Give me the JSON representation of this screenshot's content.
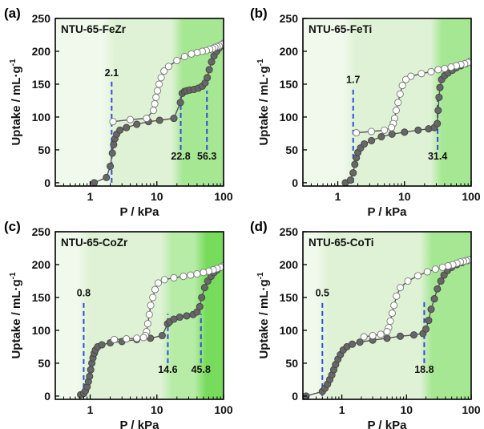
{
  "chart_data": [
    {
      "type": "scatter",
      "panel_label": "(a)",
      "title": "NTU-65-FeZr",
      "xlabel": "P / kPa",
      "ylabel": "Uptake / mL·g",
      "ylabel_sup": "-1",
      "xscale": "log",
      "xlim": [
        0.3,
        100
      ],
      "ylim": [
        -5,
        250
      ],
      "xticks": [
        1,
        10,
        100
      ],
      "xtick_labels": [
        "1",
        "10",
        "100"
      ],
      "yticks": [
        0,
        50,
        100,
        150,
        200,
        250
      ],
      "ytick_labels": [
        "0",
        "50",
        "100",
        "150",
        "200",
        "250"
      ],
      "background_bands": [
        {
          "from": 0.3,
          "to": 1.9,
          "color": "#f0f9ec"
        },
        {
          "from": 1.9,
          "to": 20,
          "color": "#dff2d5"
        },
        {
          "from": 20,
          "to": 100,
          "color": "#a6e794"
        }
      ],
      "markers": [
        {
          "x": 2.1,
          "y_from": 0,
          "y_to": 155,
          "label": "2.1",
          "label_x": 2.1,
          "label_y": 162
        },
        {
          "x": 22.8,
          "y_from": 50,
          "y_to": 140,
          "label": "22.8",
          "label_x": 22.8,
          "label_y": 35
        },
        {
          "x": 56.3,
          "y_from": 50,
          "y_to": 140,
          "label": "56.3",
          "label_x": 56.3,
          "label_y": 35
        }
      ],
      "series": [
        {
          "kind": "adsorption",
          "color": "#666666",
          "x": [
            1.15,
            1.75,
            2.0,
            2.15,
            2.25,
            2.35,
            2.5,
            2.8,
            3.5,
            5,
            7.5,
            11,
            18,
            22.5,
            24,
            26,
            28,
            31,
            36,
            42,
            48,
            53,
            57,
            61,
            66,
            72,
            79,
            86,
            93,
            100
          ],
          "y": [
            0,
            8,
            25,
            45,
            58,
            67,
            74,
            80,
            84,
            89,
            93,
            95,
            98,
            122,
            136,
            139,
            140,
            141,
            142,
            144,
            147,
            152,
            160,
            172,
            184,
            193,
            200,
            205,
            209,
            212
          ]
        },
        {
          "kind": "desorption",
          "color": "#ffffff",
          "x": [
            100,
            92,
            86,
            80,
            74,
            68,
            62,
            55,
            48,
            40,
            33,
            26,
            20,
            15,
            12.8,
            11.6,
            10.8,
            10.2,
            9.7,
            9.3,
            8.9,
            7,
            4,
            2.2
          ],
          "y": [
            212,
            210,
            208,
            207,
            206,
            204,
            203,
            201,
            200,
            198,
            196,
            192,
            186,
            177,
            170,
            160,
            150,
            140,
            130,
            120,
            110,
            98,
            96,
            93
          ]
        }
      ]
    },
    {
      "type": "scatter",
      "panel_label": "(b)",
      "title": "NTU-65-FeTi",
      "xlabel": "P / kPa",
      "ylabel": "Uptake / mL·g",
      "ylabel_sup": "-1",
      "xscale": "log",
      "xlim": [
        0.3,
        100
      ],
      "ylim": [
        -5,
        250
      ],
      "xticks": [
        1,
        10,
        100
      ],
      "xtick_labels": [
        "1",
        "10",
        "100"
      ],
      "yticks": [
        0,
        50,
        100,
        150,
        200,
        250
      ],
      "ytick_labels": [
        "0",
        "50",
        "100",
        "150",
        "200",
        "250"
      ],
      "background_bands": [
        {
          "from": 0.3,
          "to": 1.5,
          "color": "#f0f9ec"
        },
        {
          "from": 1.5,
          "to": 30,
          "color": "#dff2d5"
        },
        {
          "from": 30,
          "to": 100,
          "color": "#a6e794"
        }
      ],
      "markers": [
        {
          "x": 1.7,
          "y_from": 0,
          "y_to": 145,
          "label": "1.7",
          "label_x": 1.7,
          "label_y": 152
        },
        {
          "x": 31.4,
          "y_from": 50,
          "y_to": 128,
          "label": "31.4",
          "label_x": 31.4,
          "label_y": 35
        }
      ],
      "series": [
        {
          "kind": "adsorption",
          "color": "#666666",
          "x": [
            1.3,
            1.55,
            1.7,
            1.8,
            1.9,
            2.0,
            2.2,
            2.5,
            3.2,
            4.5,
            6.5,
            10,
            16,
            23,
            28,
            31,
            32,
            33,
            34,
            36,
            40,
            45,
            52,
            60,
            70,
            82,
            95,
            100
          ],
          "y": [
            0,
            4,
            15,
            28,
            38,
            46,
            53,
            59,
            64,
            70,
            74,
            77,
            80,
            82,
            84,
            90,
            110,
            130,
            145,
            157,
            163,
            167,
            171,
            175,
            178,
            181,
            184,
            185
          ]
        },
        {
          "kind": "desorption",
          "color": "#ffffff",
          "x": [
            100,
            90,
            80,
            70,
            60,
            50,
            40,
            32,
            25,
            18,
            12.5,
            10.5,
            9.3,
            8.6,
            8.0,
            7.5,
            7.1,
            6.8,
            6.4,
            5.0,
            3.2,
            1.9
          ],
          "y": [
            185,
            183,
            181,
            180,
            178,
            176,
            174,
            172,
            169,
            166,
            162,
            157,
            148,
            135,
            122,
            110,
            98,
            90,
            84,
            80,
            78,
            76
          ]
        }
      ]
    },
    {
      "type": "scatter",
      "panel_label": "(c)",
      "title": "NTU-65-CoZr",
      "xlabel": "P / kPa",
      "ylabel": "Uptake / mL·g",
      "ylabel_sup": "-1",
      "xscale": "log",
      "xlim": [
        0.3,
        100
      ],
      "ylim": [
        -5,
        250
      ],
      "xticks": [
        1,
        10,
        100
      ],
      "xtick_labels": [
        "1",
        "10",
        "100"
      ],
      "yticks": [
        0,
        50,
        100,
        150,
        200,
        250
      ],
      "ytick_labels": [
        "0",
        "50",
        "100",
        "150",
        "200",
        "250"
      ],
      "background_bands": [
        {
          "from": 0.3,
          "to": 0.8,
          "color": "#f0f9ec"
        },
        {
          "from": 0.8,
          "to": 14,
          "color": "#dff2d5"
        },
        {
          "from": 14,
          "to": 45,
          "color": "#b6eca6"
        },
        {
          "from": 45,
          "to": 100,
          "color": "#77db5c"
        }
      ],
      "markers": [
        {
          "x": 0.8,
          "y_from": 0,
          "y_to": 145,
          "label": "0.8",
          "label_x": 0.8,
          "label_y": 152
        },
        {
          "x": 14.6,
          "y_from": 50,
          "y_to": 125,
          "label": "14.6",
          "label_x": 14.6,
          "label_y": 35
        },
        {
          "x": 45.8,
          "y_from": 50,
          "y_to": 125,
          "label": "45.8",
          "label_x": 45.8,
          "label_y": 35
        }
      ],
      "series": [
        {
          "kind": "adsorption",
          "color": "#666666",
          "x": [
            0.72,
            0.8,
            0.85,
            0.9,
            0.94,
            0.98,
            1.02,
            1.06,
            1.1,
            1.15,
            1.2,
            1.3,
            1.5,
            2.0,
            3,
            5,
            8,
            12,
            14.5,
            15.5,
            18,
            22,
            28,
            35,
            40,
            44,
            47,
            52,
            58,
            65,
            72,
            80,
            90,
            100
          ],
          "y": [
            2,
            4,
            8,
            14,
            22,
            30,
            40,
            50,
            58,
            65,
            70,
            75,
            78,
            81,
            83,
            86,
            88,
            92,
            110,
            113,
            117,
            120,
            122,
            124,
            128,
            136,
            150,
            165,
            175,
            182,
            188,
            192,
            196,
            198
          ]
        },
        {
          "kind": "desorption",
          "color": "#ffffff",
          "x": [
            100,
            90,
            80,
            70,
            60,
            50,
            40,
            32,
            25,
            18,
            13,
            10.5,
            9.4,
            8.7,
            8.1,
            7.7,
            7.3,
            7.0,
            6.7,
            6.3,
            5.0,
            3.5,
            2.3
          ],
          "y": [
            198,
            196,
            194,
            192,
            190,
            188,
            186,
            184,
            182,
            180,
            177,
            172,
            162,
            150,
            138,
            124,
            110,
            98,
            92,
            89,
            88,
            87,
            86
          ]
        }
      ]
    },
    {
      "type": "scatter",
      "panel_label": "(d)",
      "title": "NTU-65-CoTi",
      "xlabel": "P / kPa",
      "ylabel": "Uptake / mL·g",
      "ylabel_sup": "-1",
      "xscale": "log",
      "xlim": [
        0.25,
        100
      ],
      "ylim": [
        -5,
        250
      ],
      "xticks": [
        1,
        10,
        100
      ],
      "xtick_labels": [
        "1",
        "10",
        "100"
      ],
      "yticks": [
        0,
        50,
        100,
        150,
        200,
        250
      ],
      "ytick_labels": [
        "0",
        "50",
        "100",
        "150",
        "200",
        "250"
      ],
      "background_bands": [
        {
          "from": 0.25,
          "to": 0.5,
          "color": "#f0f9ec"
        },
        {
          "from": 0.5,
          "to": 20,
          "color": "#dff2d5"
        },
        {
          "from": 20,
          "to": 100,
          "color": "#a6e794"
        }
      ],
      "markers": [
        {
          "x": 0.5,
          "y_from": 0,
          "y_to": 145,
          "label": "0.5",
          "label_x": 0.5,
          "label_y": 152
        },
        {
          "x": 18.8,
          "y_from": 50,
          "y_to": 143,
          "label": "18.8",
          "label_x": 18.8,
          "label_y": 35
        }
      ],
      "series": [
        {
          "kind": "adsorption",
          "color": "#666666",
          "x": [
            0.28,
            0.5,
            0.55,
            0.6,
            0.65,
            0.7,
            0.75,
            0.8,
            0.87,
            0.95,
            1.05,
            1.2,
            1.45,
            1.9,
            3,
            5,
            8,
            13,
            18,
            20,
            22,
            24,
            27,
            30,
            34,
            38,
            43,
            50,
            60,
            72,
            86,
            100
          ],
          "y": [
            0,
            7,
            12,
            18,
            25,
            32,
            40,
            48,
            56,
            63,
            70,
            75,
            79,
            82,
            85,
            88,
            91,
            93,
            95,
            102,
            115,
            132,
            148,
            163,
            175,
            184,
            191,
            196,
            200,
            203,
            206,
            208
          ]
        },
        {
          "kind": "desorption",
          "color": "#ffffff",
          "x": [
            100,
            92,
            84,
            76,
            68,
            60,
            52,
            44,
            36,
            28,
            21,
            15,
            10.5,
            8.0,
            7.0,
            6.4,
            6.0,
            5.6,
            5.3,
            5.0,
            4.0,
            3.0,
            2.2
          ],
          "y": [
            208,
            207,
            206,
            205,
            204,
            202,
            200,
            198,
            196,
            193,
            189,
            183,
            175,
            165,
            152,
            138,
            126,
            114,
            104,
            98,
            94,
            92,
            90
          ]
        }
      ]
    }
  ]
}
